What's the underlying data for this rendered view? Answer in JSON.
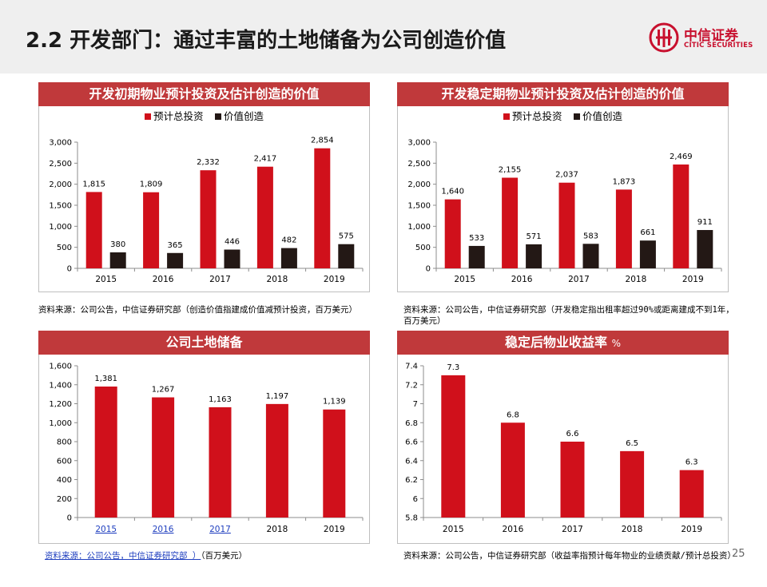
{
  "header": {
    "title": "2.2 开发部门：通过丰富的土地储备为公司创造价值"
  },
  "logo": {
    "name_cn": "中信证券",
    "name_en": "CITIC SECURITIES",
    "icon": "citic-logo-icon"
  },
  "page_number": "25",
  "colors": {
    "red": "#d0101b",
    "black": "#231815",
    "title_bar": "#c0393b"
  },
  "chart_data": [
    {
      "type": "bar",
      "title": "开发初期物业预计投资及估计创造的价值",
      "categories": [
        "2015",
        "2016",
        "2017",
        "2018",
        "2019"
      ],
      "series": [
        {
          "name": "预计总投资",
          "values": [
            1815,
            1809,
            2332,
            2417,
            2854
          ],
          "labels": [
            "1,815",
            "1,809",
            "2,332",
            "2,417",
            "2,854"
          ]
        },
        {
          "name": "价值创造",
          "values": [
            380,
            365,
            446,
            482,
            575
          ],
          "labels": [
            "380",
            "365",
            "446",
            "482",
            "575"
          ]
        }
      ],
      "yticks": [
        "0",
        "500",
        "1,000",
        "1,500",
        "2,000",
        "2,500",
        "3,000"
      ],
      "ylim": [
        0,
        3000
      ],
      "legend": "top",
      "source": "资料来源：公司公告，中信证券研究部（创造价值指建成价值减预计投资，百万美元）"
    },
    {
      "type": "bar",
      "title": "开发稳定期物业预计投资及估计创造的价值",
      "categories": [
        "2015",
        "2016",
        "2017",
        "2018",
        "2019"
      ],
      "series": [
        {
          "name": "预计总投资",
          "values": [
            1640,
            2155,
            2037,
            1873,
            2469
          ],
          "labels": [
            "1,640",
            "2,155",
            "2,037",
            "1,873",
            "2,469"
          ]
        },
        {
          "name": "价值创造",
          "values": [
            533,
            571,
            583,
            661,
            911
          ],
          "labels": [
            "533",
            "571",
            "583",
            "661",
            "911"
          ]
        }
      ],
      "yticks": [
        "0",
        "500",
        "1,000",
        "1,500",
        "2,000",
        "2,500",
        "3,000"
      ],
      "ylim": [
        0,
        3000
      ],
      "legend": "top",
      "source": "资料来源：公司公告，中信证券研究部（开发稳定指出租率超过90%或距离建成不到1年，百万美元）"
    },
    {
      "type": "bar",
      "title": "公司土地储备",
      "categories": [
        "2015",
        "2016",
        "2017",
        "2018",
        "2019"
      ],
      "series": [
        {
          "values": [
            1381,
            1267,
            1163,
            1197,
            1139
          ],
          "labels": [
            "1,381",
            "1,267",
            "1,163",
            "1,197",
            "1,139"
          ]
        }
      ],
      "yticks": [
        "0",
        "200",
        "400",
        "600",
        "800",
        "1,000",
        "1,200",
        "1,400",
        "1,600"
      ],
      "ylim": [
        0,
        1600
      ],
      "source_link": "资料来源：公司公告，中信证券研究部 ）",
      "source_tail": "（百万美元）"
    },
    {
      "type": "bar",
      "title": "稳定后物业收益率",
      "unit": "%",
      "categories": [
        "2015",
        "2016",
        "2017",
        "2018",
        "2019"
      ],
      "series": [
        {
          "values": [
            7.3,
            6.8,
            6.6,
            6.5,
            6.3
          ],
          "labels": [
            "7.3",
            "6.8",
            "6.6",
            "6.5",
            "6.3"
          ]
        }
      ],
      "yticks": [
        "5.8",
        "6",
        "6.2",
        "6.4",
        "6.6",
        "6.8",
        "7",
        "7.2",
        "7.4"
      ],
      "ylim": [
        5.8,
        7.4
      ],
      "source": "资料来源：公司公告，中信证券研究部（收益率指预计每年物业的业绩贡献/预计总投资）"
    }
  ]
}
